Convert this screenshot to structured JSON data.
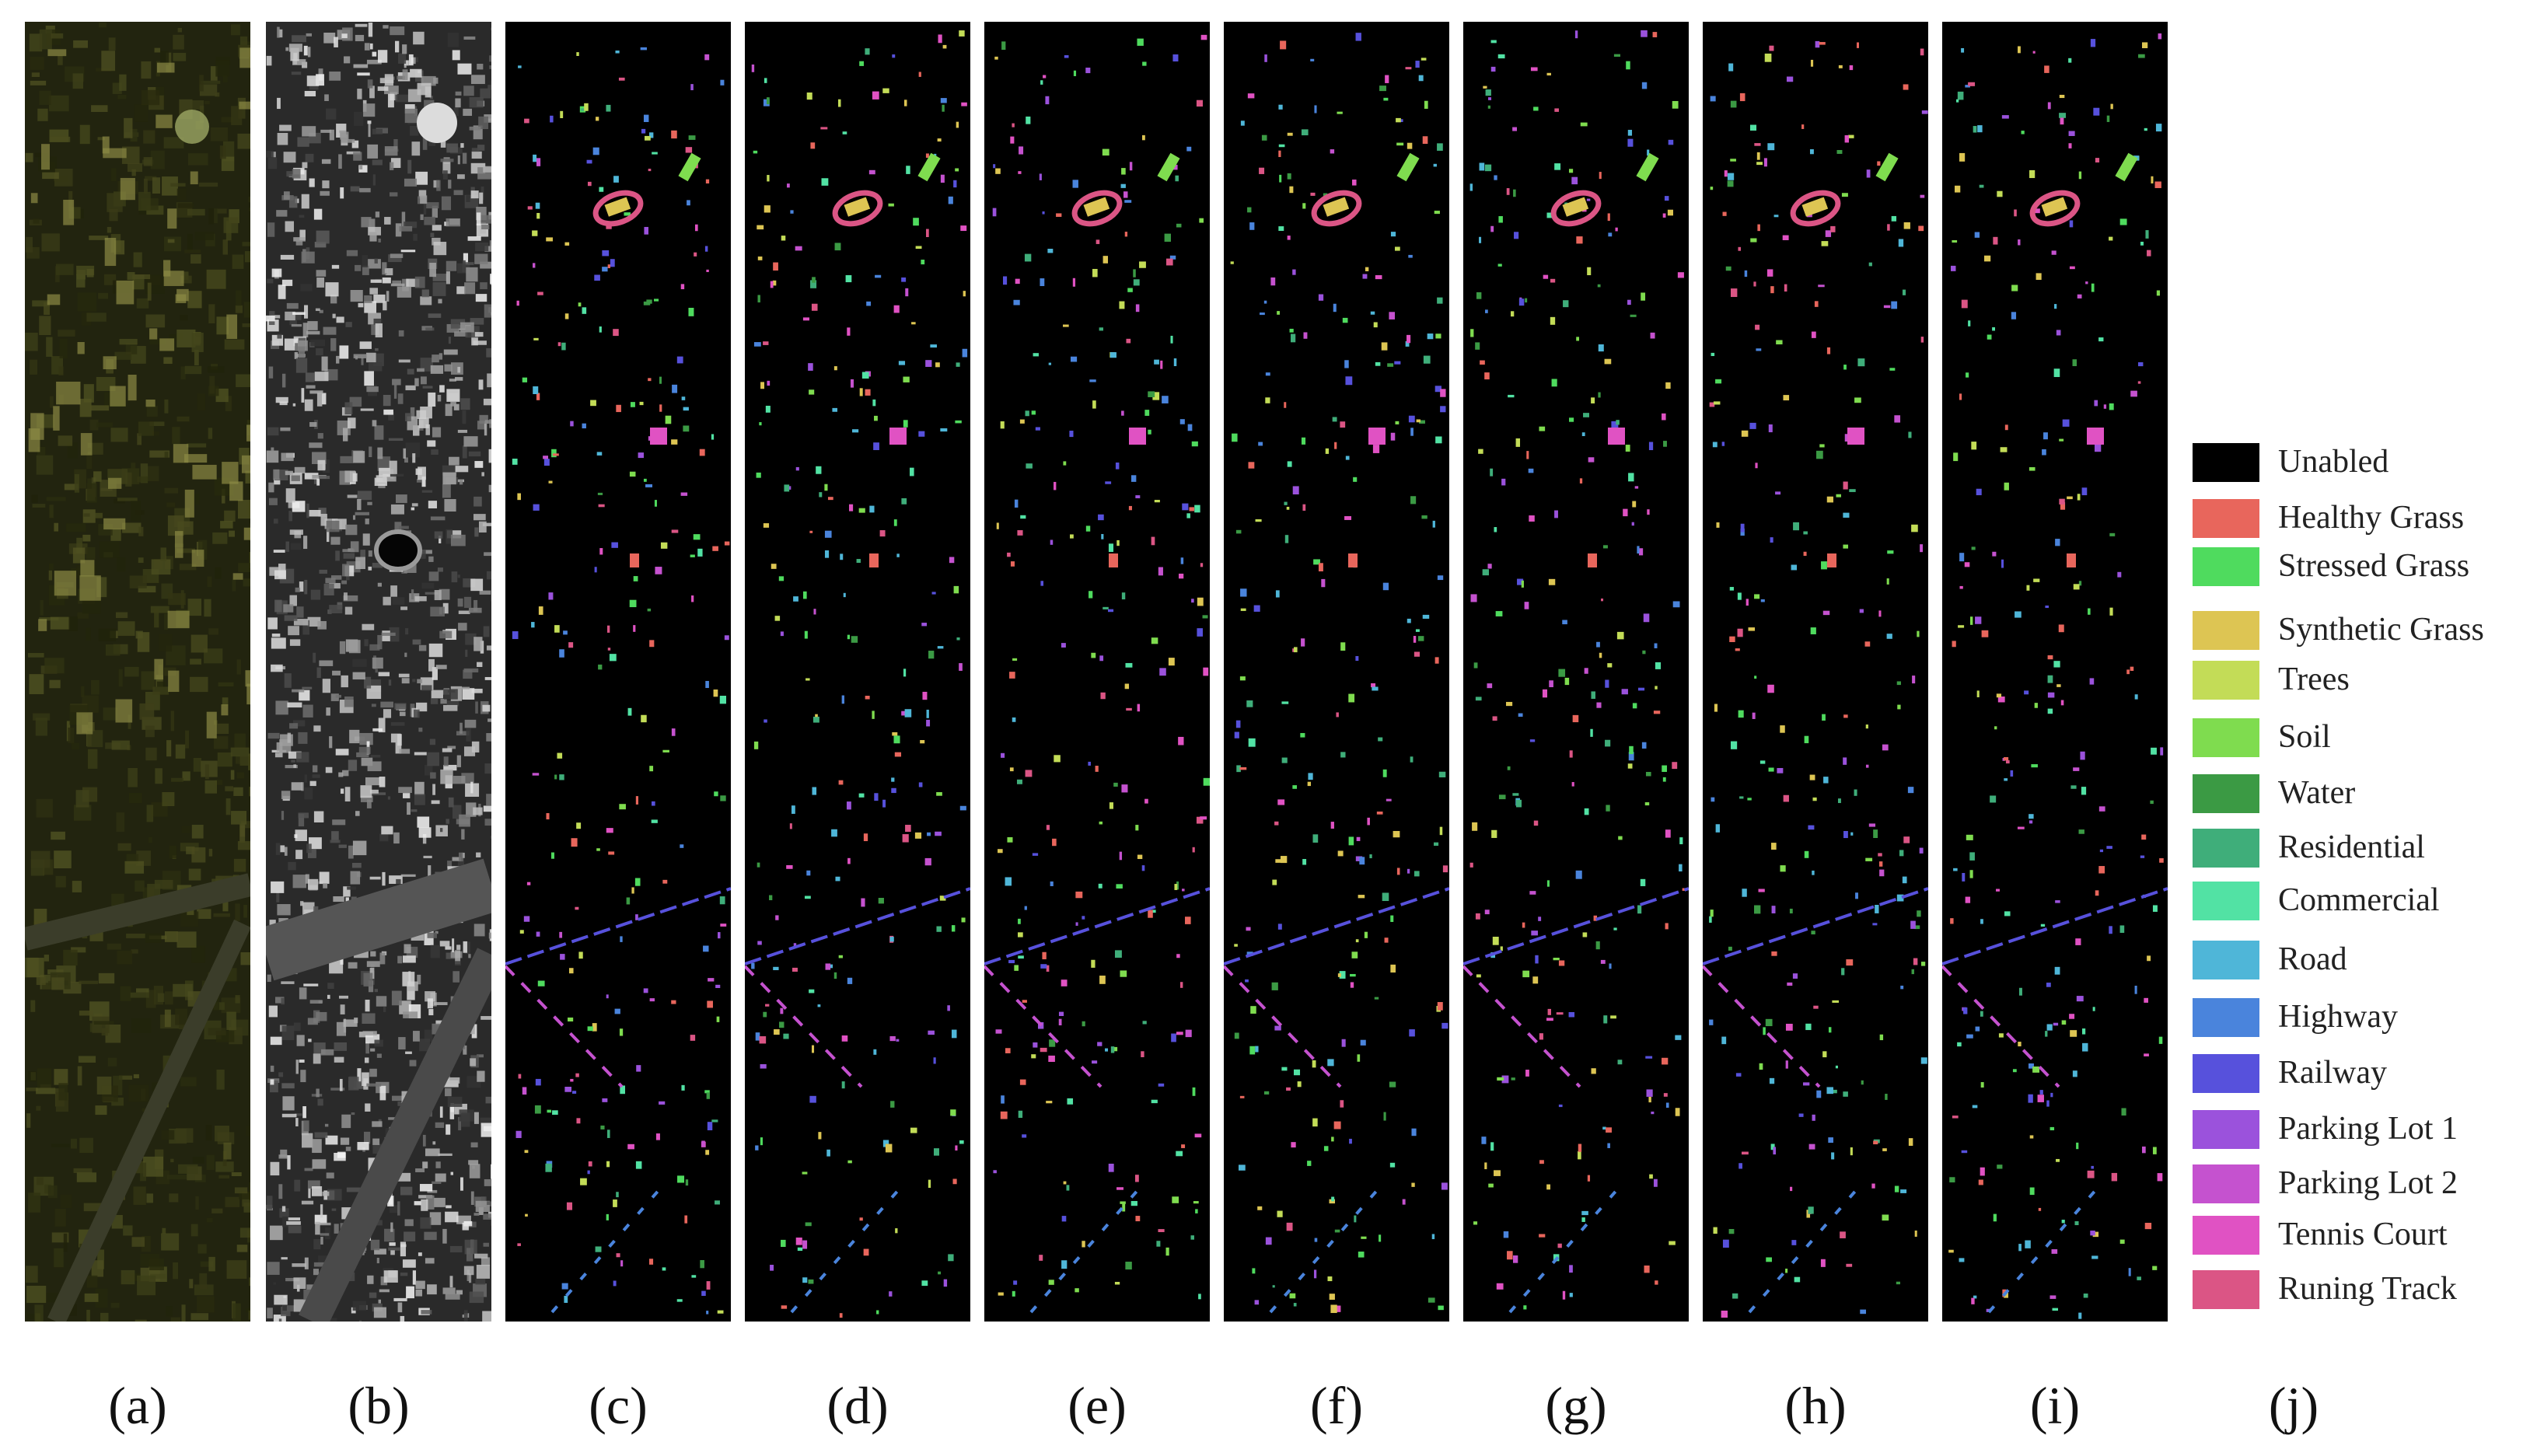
{
  "figure": {
    "panels": [
      {
        "caption": "(a)",
        "kind": "rgb-composite"
      },
      {
        "caption": "(b)",
        "kind": "grayscale-band"
      },
      {
        "caption": "(c)",
        "kind": "classification-map"
      },
      {
        "caption": "(d)",
        "kind": "classification-map"
      },
      {
        "caption": "(e)",
        "kind": "classification-map"
      },
      {
        "caption": "(f)",
        "kind": "classification-map"
      },
      {
        "caption": "(g)",
        "kind": "classification-map"
      },
      {
        "caption": "(h)",
        "kind": "classification-map"
      },
      {
        "caption": "(i)",
        "kind": "classification-map"
      }
    ],
    "legend_caption": "(j)"
  },
  "legend": [
    {
      "label": "Unabled",
      "color": "#000000"
    },
    {
      "label": "Healthy Grass",
      "color": "#e8665c"
    },
    {
      "label": "Stressed Grass",
      "color": "#4fdb5e"
    },
    {
      "label": "Synthetic Grass",
      "color": "#ddc553"
    },
    {
      "label": "Trees",
      "color": "#c3dc57"
    },
    {
      "label": "Soil",
      "color": "#7fdc4f"
    },
    {
      "label": "Water",
      "color": "#3b9a44"
    },
    {
      "label": "Residential",
      "color": "#3fae7a"
    },
    {
      "label": "Commercial",
      "color": "#52e2a4"
    },
    {
      "label": "Road",
      "color": "#4fb6d8"
    },
    {
      "label": "Highway",
      "color": "#4a84dc"
    },
    {
      "label": "Railway",
      "color": "#5751dc"
    },
    {
      "label": "Parking Lot 1",
      "color": "#9b52dc"
    },
    {
      "label": "Parking Lot 2",
      "color": "#c552cf"
    },
    {
      "label": "Tennis Court",
      "color": "#e052c3"
    },
    {
      "label": "Runing Track",
      "color": "#db5585"
    }
  ]
}
